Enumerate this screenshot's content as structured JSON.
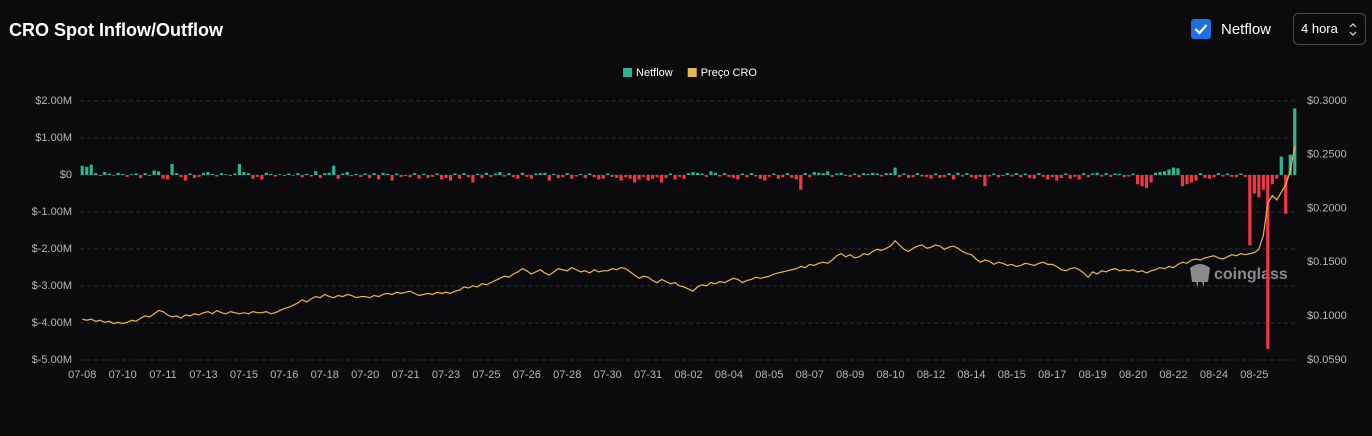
{
  "header": {
    "title": "CRO Spot Inflow/Outflow",
    "toggle_label": "Netflow",
    "interval": "4 hora"
  },
  "chart_data": {
    "type": "bar",
    "watermark": "coinglass",
    "grid": true,
    "categories": [
      "07-08",
      null,
      null,
      null,
      null,
      null,
      null,
      null,
      null,
      "07-10",
      null,
      null,
      null,
      null,
      null,
      null,
      null,
      null,
      "07-11",
      null,
      null,
      null,
      null,
      null,
      null,
      null,
      null,
      "07-13",
      null,
      null,
      null,
      null,
      null,
      null,
      null,
      null,
      "07-15",
      null,
      null,
      null,
      null,
      null,
      null,
      null,
      null,
      "07-16",
      null,
      null,
      null,
      null,
      null,
      null,
      null,
      null,
      "07-18",
      null,
      null,
      null,
      null,
      null,
      null,
      null,
      null,
      "07-20",
      null,
      null,
      null,
      null,
      null,
      null,
      null,
      null,
      "07-21",
      null,
      null,
      null,
      null,
      null,
      null,
      null,
      null,
      "07-23",
      null,
      null,
      null,
      null,
      null,
      null,
      null,
      null,
      "07-25",
      null,
      null,
      null,
      null,
      null,
      null,
      null,
      null,
      "07-26",
      null,
      null,
      null,
      null,
      null,
      null,
      null,
      null,
      "07-28",
      null,
      null,
      null,
      null,
      null,
      null,
      null,
      null,
      "07-30",
      null,
      null,
      null,
      null,
      null,
      null,
      null,
      null,
      "07-31",
      null,
      null,
      null,
      null,
      null,
      null,
      null,
      null,
      "08-02",
      null,
      null,
      null,
      null,
      null,
      null,
      null,
      null,
      "08-04",
      null,
      null,
      null,
      null,
      null,
      null,
      null,
      null,
      "08-05",
      null,
      null,
      null,
      null,
      null,
      null,
      null,
      null,
      "08-07",
      null,
      null,
      null,
      null,
      null,
      null,
      null,
      null,
      "08-09",
      null,
      null,
      null,
      null,
      null,
      null,
      null,
      null,
      "08-10",
      null,
      null,
      null,
      null,
      null,
      null,
      null,
      null,
      "08-12",
      null,
      null,
      null,
      null,
      null,
      null,
      null,
      null,
      "08-14",
      null,
      null,
      null,
      null,
      null,
      null,
      null,
      null,
      "08-15",
      null,
      null,
      null,
      null,
      null,
      null,
      null,
      null,
      "08-17",
      null,
      null,
      null,
      null,
      null,
      null,
      null,
      null,
      "08-19",
      null,
      null,
      null,
      null,
      null,
      null,
      null,
      null,
      "08-20",
      null,
      null,
      null,
      null,
      null,
      null,
      null,
      null,
      "08-22",
      null,
      null,
      null,
      null,
      null,
      null,
      null,
      null,
      "08-24",
      null,
      null,
      null,
      null,
      null,
      null,
      null,
      null,
      "08-25",
      null,
      null,
      null,
      null,
      null,
      null,
      null,
      null,
      null
    ],
    "ylim": [
      -5,
      2
    ],
    "yticks": [
      {
        "value": 2,
        "label": "$2.00M"
      },
      {
        "value": 1,
        "label": "$1.00M"
      },
      {
        "value": 0,
        "label": "$0"
      },
      {
        "value": -1,
        "label": "$-1.00M"
      },
      {
        "value": -2,
        "label": "$-2.00M"
      },
      {
        "value": -3,
        "label": "$-3.00M"
      },
      {
        "value": -4,
        "label": "$-4.00M"
      },
      {
        "value": -5,
        "label": "$-5.00M"
      }
    ],
    "y2lim": [
      0.059,
      0.3
    ],
    "y2ticks": [
      {
        "value": 0.3,
        "label": "$0.3000"
      },
      {
        "value": 0.25,
        "label": "$0.2500"
      },
      {
        "value": 0.2,
        "label": "$0.2000"
      },
      {
        "value": 0.15,
        "label": "$0.1500"
      },
      {
        "value": 0.1,
        "label": "$0.1000"
      },
      {
        "value": 0.059,
        "label": "$0.0590"
      }
    ],
    "series": [
      {
        "name": "Netflow",
        "type": "bar",
        "color": "#2bb596",
        "negative_color": "#f23645",
        "values": [
          0.25,
          0.22,
          0.28,
          0.05,
          -0.03,
          0.08,
          0.04,
          -0.02,
          0.06,
          0.03,
          -0.05,
          0.02,
          0.04,
          -0.08,
          0.05,
          -0.03,
          0.12,
          0.1,
          -0.1,
          -0.12,
          0.3,
          0.05,
          -0.06,
          -0.15,
          0.04,
          -0.08,
          -0.05,
          0.06,
          0.08,
          0.03,
          -0.04,
          0.05,
          0.02,
          -0.03,
          0.04,
          0.3,
          0.08,
          0.05,
          -0.1,
          -0.05,
          -0.12,
          0.06,
          0.03,
          -0.04,
          0.02,
          -0.03,
          0.04,
          -0.02,
          0.05,
          -0.06,
          0.03,
          -0.04,
          0.1,
          -0.08,
          0.05,
          0.06,
          0.25,
          -0.1,
          0.04,
          0.08,
          -0.03,
          0.03,
          -0.05,
          0.04,
          -0.08,
          0.05,
          -0.12,
          0.06,
          0.03,
          -0.15,
          0.04,
          -0.05,
          -0.03,
          -0.06,
          0.05,
          -0.1,
          0.03,
          -0.08,
          -0.05,
          0.04,
          -0.12,
          -0.08,
          -0.15,
          0.04,
          -0.1,
          0.05,
          -0.06,
          -0.2,
          0.03,
          -0.08,
          0.06,
          -0.05,
          0.04,
          0.08,
          -0.04,
          0.05,
          -0.06,
          -0.1,
          0.06,
          -0.05,
          -0.1,
          0.04,
          0.05,
          0.06,
          -0.15,
          0.03,
          -0.08,
          -0.06,
          0.05,
          -0.1,
          -0.04,
          0.03,
          -0.08,
          0.04,
          -0.06,
          -0.12,
          -0.1,
          0.04,
          -0.05,
          -0.08,
          -0.15,
          -0.06,
          -0.1,
          -0.2,
          -0.12,
          -0.05,
          -0.15,
          -0.1,
          -0.06,
          -0.2,
          -0.08,
          0.04,
          -0.12,
          -0.05,
          -0.1,
          0.05,
          0.08,
          0.06,
          0.04,
          -0.05,
          0.1,
          0.06,
          -0.04,
          0.05,
          -0.05,
          -0.08,
          -0.12,
          0.04,
          -0.06,
          0.05,
          -0.04,
          -0.1,
          -0.15,
          -0.05,
          0.04,
          -0.1,
          -0.06,
          0.05,
          -0.08,
          -0.12,
          -0.4,
          0.05,
          -0.06,
          0.08,
          0.06,
          0.05,
          0.1,
          -0.05,
          0.04,
          0.06,
          -0.03,
          -0.05,
          0.04,
          -0.06,
          0.05,
          0.03,
          0.06,
          0.04,
          -0.04,
          0.05,
          0.05,
          0.2,
          -0.05,
          0.04,
          -0.08,
          -0.06,
          0.05,
          -0.04,
          -0.05,
          -0.1,
          0.04,
          -0.08,
          -0.06,
          0.05,
          -0.12,
          0.06,
          -0.04,
          0.05,
          -0.06,
          -0.1,
          -0.05,
          -0.3,
          -0.04,
          0.04,
          -0.06,
          -0.03,
          0.05,
          -0.04,
          0.05,
          -0.06,
          0.04,
          -0.08,
          -0.1,
          0.05,
          -0.05,
          -0.12,
          -0.06,
          -0.15,
          -0.08,
          0.04,
          -0.1,
          -0.05,
          -0.12,
          0.05,
          -0.06,
          0.04,
          0.06,
          -0.04,
          0.05,
          -0.05,
          0.04,
          0.03,
          -0.06,
          -0.04,
          0.04,
          -0.25,
          -0.3,
          -0.35,
          -0.2,
          0.06,
          0.08,
          0.1,
          0.15,
          0.2,
          0.18,
          -0.3,
          -0.25,
          -0.2,
          -0.15,
          0.05,
          -0.08,
          -0.1,
          -0.06,
          0.05,
          -0.04,
          0.04,
          -0.05,
          -0.06,
          0.04,
          -0.05,
          -1.9,
          -0.5,
          -0.6,
          -0.4,
          -4.7,
          -0.25,
          -0.1,
          0.5,
          -1.05,
          0.55,
          1.8
        ]
      },
      {
        "name": "Preço CRO",
        "type": "line",
        "axis": "y2",
        "color": "#e8b84a",
        "values": [
          0.097,
          0.096,
          0.097,
          0.095,
          0.096,
          0.094,
          0.095,
          0.093,
          0.094,
          0.093,
          0.094,
          0.096,
          0.095,
          0.098,
          0.1,
          0.099,
          0.102,
          0.105,
          0.104,
          0.101,
          0.099,
          0.1,
          0.098,
          0.101,
          0.1,
          0.102,
          0.101,
          0.103,
          0.104,
          0.102,
          0.105,
          0.103,
          0.102,
          0.104,
          0.103,
          0.102,
          0.103,
          0.102,
          0.104,
          0.103,
          0.103,
          0.104,
          0.102,
          0.103,
          0.105,
          0.107,
          0.108,
          0.11,
          0.112,
          0.115,
          0.113,
          0.116,
          0.118,
          0.117,
          0.12,
          0.118,
          0.117,
          0.119,
          0.118,
          0.12,
          0.119,
          0.117,
          0.118,
          0.118,
          0.117,
          0.119,
          0.118,
          0.12,
          0.121,
          0.12,
          0.122,
          0.121,
          0.122,
          0.123,
          0.121,
          0.119,
          0.12,
          0.121,
          0.12,
          0.122,
          0.121,
          0.122,
          0.121,
          0.123,
          0.124,
          0.127,
          0.126,
          0.128,
          0.127,
          0.13,
          0.129,
          0.131,
          0.133,
          0.135,
          0.137,
          0.136,
          0.139,
          0.141,
          0.144,
          0.142,
          0.139,
          0.141,
          0.143,
          0.14,
          0.138,
          0.141,
          0.144,
          0.143,
          0.142,
          0.145,
          0.143,
          0.141,
          0.142,
          0.14,
          0.143,
          0.141,
          0.142,
          0.142,
          0.144,
          0.143,
          0.145,
          0.144,
          0.141,
          0.138,
          0.135,
          0.137,
          0.136,
          0.133,
          0.131,
          0.134,
          0.132,
          0.13,
          0.131,
          0.128,
          0.127,
          0.125,
          0.123,
          0.127,
          0.129,
          0.128,
          0.131,
          0.13,
          0.132,
          0.131,
          0.133,
          0.135,
          0.134,
          0.131,
          0.133,
          0.134,
          0.136,
          0.135,
          0.136,
          0.137,
          0.139,
          0.14,
          0.141,
          0.142,
          0.143,
          0.144,
          0.146,
          0.145,
          0.148,
          0.147,
          0.149,
          0.15,
          0.149,
          0.152,
          0.156,
          0.158,
          0.155,
          0.157,
          0.154,
          0.155,
          0.158,
          0.157,
          0.16,
          0.162,
          0.161,
          0.163,
          0.165,
          0.17,
          0.166,
          0.162,
          0.16,
          0.163,
          0.165,
          0.166,
          0.163,
          0.164,
          0.166,
          0.165,
          0.162,
          0.164,
          0.165,
          0.163,
          0.16,
          0.158,
          0.157,
          0.153,
          0.15,
          0.152,
          0.151,
          0.148,
          0.15,
          0.149,
          0.147,
          0.148,
          0.146,
          0.147,
          0.149,
          0.148,
          0.147,
          0.149,
          0.15,
          0.148,
          0.148,
          0.146,
          0.143,
          0.142,
          0.144,
          0.145,
          0.143,
          0.14,
          0.136,
          0.141,
          0.139,
          0.142,
          0.141,
          0.143,
          0.144,
          0.142,
          0.143,
          0.142,
          0.143,
          0.141,
          0.142,
          0.14,
          0.142,
          0.143,
          0.145,
          0.144,
          0.146,
          0.145,
          0.148,
          0.15,
          0.149,
          0.152,
          0.153,
          0.152,
          0.154,
          0.155,
          0.156,
          0.154,
          0.153,
          0.155,
          0.157,
          0.156,
          0.158,
          0.157,
          0.158,
          0.159,
          0.162,
          0.175,
          0.205,
          0.212,
          0.208,
          0.215,
          0.222,
          0.235,
          0.258
        ]
      }
    ]
  }
}
